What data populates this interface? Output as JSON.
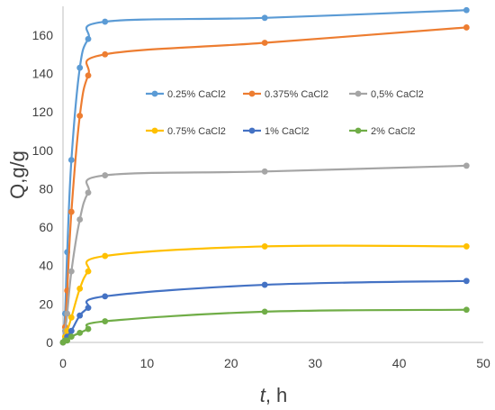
{
  "chart_data": {
    "type": "line",
    "xlabel_italic": "t",
    "xlabel_unit": ", h",
    "ylabel": "Q,g/g",
    "xlim": [
      0,
      50
    ],
    "ylim": [
      0,
      175
    ],
    "x_ticks": [
      0,
      10,
      20,
      30,
      40,
      50
    ],
    "y_ticks": [
      0,
      20,
      40,
      60,
      80,
      100,
      120,
      140,
      160
    ],
    "grid": false,
    "legend_position": "upper-middle",
    "series": [
      {
        "name": "0.25% CaCl2",
        "color": "#5B9BD5",
        "x": [
          0,
          0.25,
          0.5,
          1,
          2,
          3,
          5,
          24,
          48
        ],
        "y": [
          0,
          15,
          47,
          95,
          143,
          158,
          167,
          169,
          173
        ]
      },
      {
        "name": "0.375% CaCl2",
        "color": "#ED7D31",
        "x": [
          0,
          0.25,
          0.5,
          1,
          2,
          3,
          5,
          24,
          48
        ],
        "y": [
          0,
          8,
          27,
          68,
          118,
          139,
          150,
          156,
          164
        ]
      },
      {
        "name": "0,5% CaCl2",
        "color": "#A5A5A5",
        "x": [
          0,
          0.25,
          0.5,
          1,
          2,
          3,
          5,
          24,
          48
        ],
        "y": [
          0,
          6,
          15,
          37,
          64,
          78,
          87,
          89,
          92
        ]
      },
      {
        "name": "0.75% CaCl2",
        "color": "#FFC000",
        "x": [
          0,
          0.25,
          0.5,
          1,
          2,
          3,
          5,
          24,
          48
        ],
        "y": [
          0,
          3,
          6,
          13,
          28,
          37,
          45,
          50,
          50
        ]
      },
      {
        "name": "1% CaCl2",
        "color": "#4472C4",
        "x": [
          0,
          0.25,
          0.5,
          1,
          2,
          3,
          5,
          24,
          48
        ],
        "y": [
          0,
          1,
          3,
          6,
          14,
          18,
          24,
          30,
          32
        ]
      },
      {
        "name": "2% CaCl2",
        "color": "#70AD47",
        "x": [
          0,
          0.25,
          0.5,
          1,
          2,
          3,
          5,
          24,
          48
        ],
        "y": [
          0,
          1,
          1,
          3,
          5,
          7,
          11,
          16,
          17
        ]
      }
    ]
  }
}
